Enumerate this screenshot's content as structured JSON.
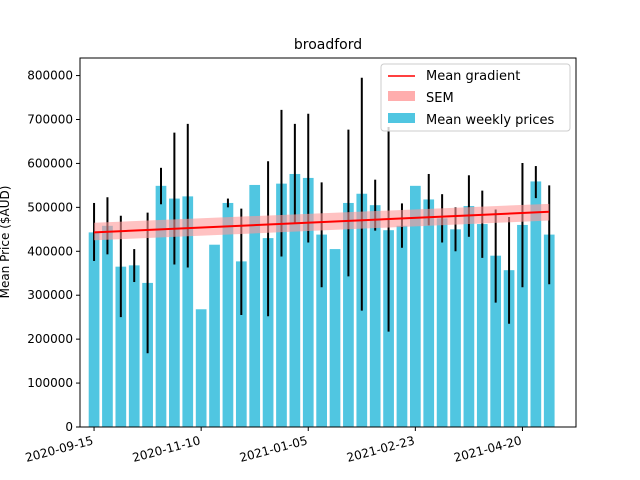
{
  "chart_data": {
    "type": "bar",
    "title": "broadford",
    "xlabel": "",
    "ylabel": "Mean Price ($AUD)",
    "ylim": [
      0,
      840000
    ],
    "yticks": [
      0,
      100000,
      200000,
      300000,
      400000,
      500000,
      600000,
      700000,
      800000
    ],
    "ytick_labels": [
      "0",
      "100000",
      "200000",
      "300000",
      "400000",
      "500000",
      "600000",
      "700000",
      "800000"
    ],
    "x_start_date": "2020-09-15",
    "xlim_weeks": [
      -1.05,
      36.0
    ],
    "xticks_weeks": [
      0,
      8,
      16,
      24,
      32
    ],
    "xtick_labels": [
      "2020-09-15",
      "2020-11-10",
      "2021-01-05",
      "2021-02-23",
      "2021-04-20"
    ],
    "bar_color": "#50c6e1",
    "error_color": "#000000",
    "series": [
      {
        "name": "Mean weekly prices",
        "week": [
          0,
          1,
          2,
          3,
          4,
          5,
          6,
          7,
          8,
          9,
          10,
          11,
          12,
          13,
          14,
          15,
          16,
          17,
          18,
          19,
          20,
          21,
          22,
          23,
          24,
          25,
          26,
          27,
          28,
          29,
          30,
          31,
          32,
          33,
          34,
          35
        ],
        "values": [
          443000,
          458000,
          365000,
          368000,
          328000,
          549000,
          520000,
          525000,
          268000,
          415000,
          510000,
          377000,
          551000,
          430000,
          554000,
          576000,
          567000,
          438000,
          405000,
          510000,
          531000,
          505000,
          448000,
          458000,
          549000,
          518000,
          475000,
          450000,
          503000,
          462000,
          390000,
          357000,
          460000,
          559000,
          438000,
          0
        ],
        "err_low": [
          378000,
          393000,
          250000,
          330000,
          168000,
          507000,
          370000,
          363000,
          268000,
          415000,
          500000,
          255000,
          551000,
          252000,
          388000,
          462000,
          420000,
          318000,
          405000,
          343000,
          265000,
          447000,
          217000,
          408000,
          549000,
          459000,
          420000,
          400000,
          433000,
          385000,
          283000,
          235000,
          318000,
          521000,
          325000,
          0
        ],
        "err_high": [
          510000,
          523000,
          481000,
          405000,
          488000,
          590000,
          670000,
          690000,
          268000,
          415000,
          520000,
          497000,
          551000,
          605000,
          722000,
          690000,
          713000,
          557000,
          405000,
          677000,
          795000,
          563000,
          683000,
          509000,
          549000,
          576000,
          530000,
          500000,
          573000,
          538000,
          495000,
          478000,
          601000,
          594000,
          550000,
          0
        ]
      },
      {
        "name": "Mean gradient",
        "color": "#ff0000",
        "x": [
          0,
          34
        ],
        "y": [
          443000,
          490000
        ]
      },
      {
        "name": "SEM",
        "color": "#ff9999",
        "x": [
          0,
          34
        ],
        "lower": [
          425000,
          470000
        ],
        "upper": [
          465000,
          508000
        ]
      }
    ],
    "legend": {
      "position": "top-right",
      "entries": [
        "Mean gradient",
        "SEM",
        "Mean weekly prices"
      ]
    }
  }
}
